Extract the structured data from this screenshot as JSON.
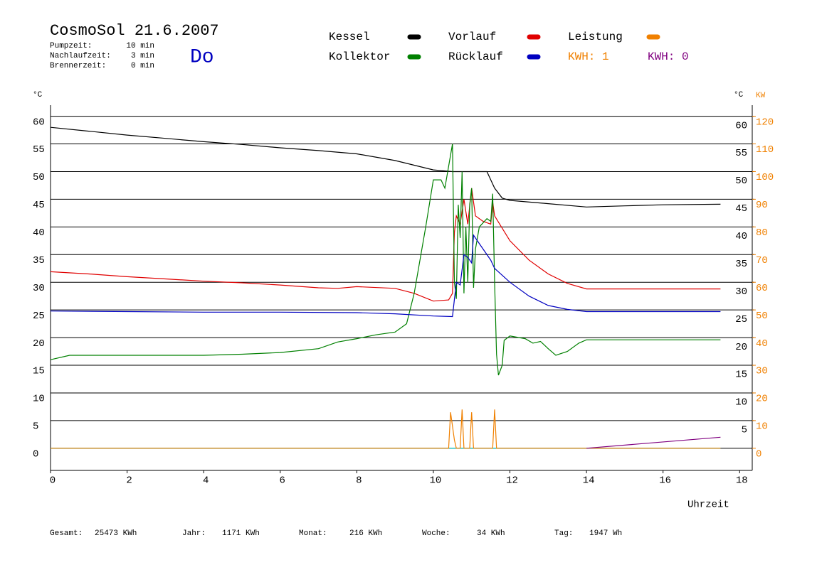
{
  "chart_data": {
    "type": "line",
    "title": "CosmoSol 21.6.2007",
    "day": "Do",
    "info": [
      {
        "label": "Pumpzeit:",
        "value": "10 min"
      },
      {
        "label": "Nachlaufzeit:",
        "value": "3 min"
      },
      {
        "label": "Brennerzeit:",
        "value": "0 min"
      }
    ],
    "y_label": "°C",
    "y2_label_c": "°C",
    "y2_label": "KW",
    "x_label": "Uhrzeit",
    "xlim": [
      0,
      18.33
    ],
    "xticks": [
      0,
      2,
      4,
      6,
      8,
      10,
      12,
      14,
      16,
      18
    ],
    "ylim": [
      -4,
      62
    ],
    "yticks": [
      0,
      5,
      10,
      15,
      20,
      25,
      30,
      35,
      40,
      45,
      50,
      55,
      60
    ],
    "yticks_right": [
      5,
      10,
      15,
      20,
      25,
      30,
      35,
      40,
      45,
      50,
      55,
      60
    ],
    "y2lim": [
      -8,
      124
    ],
    "y2ticks": [
      0,
      10,
      20,
      30,
      40,
      50,
      60,
      70,
      80,
      90,
      100,
      110,
      120
    ],
    "grid": true,
    "series": [
      {
        "name": "Kessel",
        "color": "#000000",
        "x": [
          0,
          1,
          2,
          3,
          4,
          5,
          6,
          7,
          8,
          9,
          10,
          10.5,
          11,
          11.4,
          11.6,
          11.8,
          12,
          13,
          14,
          15,
          16,
          17.5
        ],
        "values": [
          58.0,
          57.3,
          56.6,
          56.0,
          55.4,
          54.9,
          54.3,
          53.8,
          53.2,
          52.0,
          50.3,
          50.0,
          50.0,
          50.0,
          47.0,
          45.2,
          44.8,
          44.2,
          43.6,
          43.8,
          44.0,
          44.1
        ]
      },
      {
        "name": "Vorlauf",
        "color": "#e00000",
        "x": [
          0,
          1,
          2,
          3,
          4,
          5,
          6,
          7,
          7.5,
          8,
          9,
          9.5,
          10,
          10.4,
          10.5,
          10.55,
          10.6,
          10.7,
          10.8,
          10.9,
          11.0,
          11.1,
          11.3,
          11.5,
          11.55,
          11.6,
          12,
          12.5,
          13,
          13.5,
          14,
          17.5
        ],
        "values": [
          31.9,
          31.5,
          31.0,
          30.6,
          30.2,
          29.9,
          29.5,
          29.0,
          28.9,
          29.2,
          28.9,
          28.0,
          26.6,
          26.8,
          28.0,
          39.0,
          42.0,
          40.5,
          45.0,
          40.5,
          47.0,
          42.0,
          41.0,
          40.5,
          44.5,
          42.0,
          37.5,
          34.0,
          31.5,
          29.8,
          28.8,
          28.8
        ]
      },
      {
        "name": "Leistung",
        "color": "#f08000",
        "axis": "y2",
        "x": [
          0,
          10.4,
          10.45,
          10.55,
          10.6,
          10.7,
          10.75,
          10.8,
          10.95,
          11.0,
          11.05,
          11.55,
          11.6,
          11.65,
          17.5
        ],
        "values": [
          0,
          0,
          13,
          3,
          0,
          0,
          14,
          0,
          0,
          13,
          0,
          0,
          14,
          0,
          0
        ]
      },
      {
        "name": "Kollektor",
        "color": "#008000",
        "x": [
          0,
          0.5,
          1,
          2,
          3,
          4,
          5,
          6,
          7,
          7.5,
          8,
          8.5,
          9,
          9.3,
          9.5,
          9.8,
          10,
          10.2,
          10.3,
          10.5,
          10.55,
          10.6,
          10.65,
          10.7,
          10.75,
          10.8,
          10.85,
          10.9,
          10.95,
          11.0,
          11.05,
          11.1,
          11.2,
          11.4,
          11.5,
          11.55,
          11.6,
          11.65,
          11.7,
          11.8,
          11.85,
          12,
          12.4,
          12.6,
          12.8,
          13,
          13.2,
          13.5,
          13.8,
          14,
          17.5
        ],
        "values": [
          16.0,
          16.8,
          16.8,
          16.8,
          16.8,
          16.8,
          17.0,
          17.3,
          18.0,
          19.2,
          19.8,
          20.5,
          21.0,
          22.5,
          28.0,
          40.0,
          48.5,
          48.5,
          47.0,
          55.0,
          30.0,
          27.0,
          44.0,
          38.0,
          50.0,
          28.0,
          40.0,
          30.0,
          44.0,
          47.0,
          29.0,
          36.0,
          40.0,
          41.5,
          41.0,
          46.0,
          30.0,
          17.0,
          13.2,
          15.0,
          19.5,
          20.3,
          19.8,
          19.0,
          19.3,
          18.0,
          16.8,
          17.5,
          19.0,
          19.6,
          19.6
        ]
      },
      {
        "name": "Rücklauf",
        "color": "#0000c0",
        "x": [
          0,
          2,
          4,
          6,
          8,
          9,
          10,
          10.5,
          10.6,
          10.7,
          10.8,
          10.9,
          11.0,
          11.05,
          11.3,
          11.5,
          11.6,
          12,
          12.5,
          13,
          13.5,
          14,
          17.5
        ],
        "values": [
          24.8,
          24.7,
          24.6,
          24.6,
          24.5,
          24.3,
          23.9,
          23.8,
          30.0,
          29.5,
          35.0,
          34.5,
          33.5,
          38.5,
          36.0,
          34.0,
          32.5,
          30.0,
          27.5,
          25.8,
          25.1,
          24.7,
          24.7
        ]
      },
      {
        "color": "#00d0d0",
        "x": [
          0,
          17.5
        ],
        "values": [
          0,
          0
        ]
      },
      {
        "color": "#800080",
        "x": [
          14,
          17.5
        ],
        "values": [
          0,
          2
        ]
      }
    ],
    "kwh": [
      {
        "label": "KWH: 1",
        "color": "#f08000"
      },
      {
        "label": "KWH: 0",
        "color": "#800080"
      }
    ],
    "totals": [
      {
        "label": "Gesamt:",
        "value": "25473 KWh"
      },
      {
        "label": "Jahr:",
        "value": "1171 KWh"
      },
      {
        "label": "Monat:",
        "value": "216 KWh"
      },
      {
        "label": "Woche:",
        "value": "34 KWh"
      },
      {
        "label": "Tag:",
        "value": "1947 Wh"
      }
    ]
  }
}
